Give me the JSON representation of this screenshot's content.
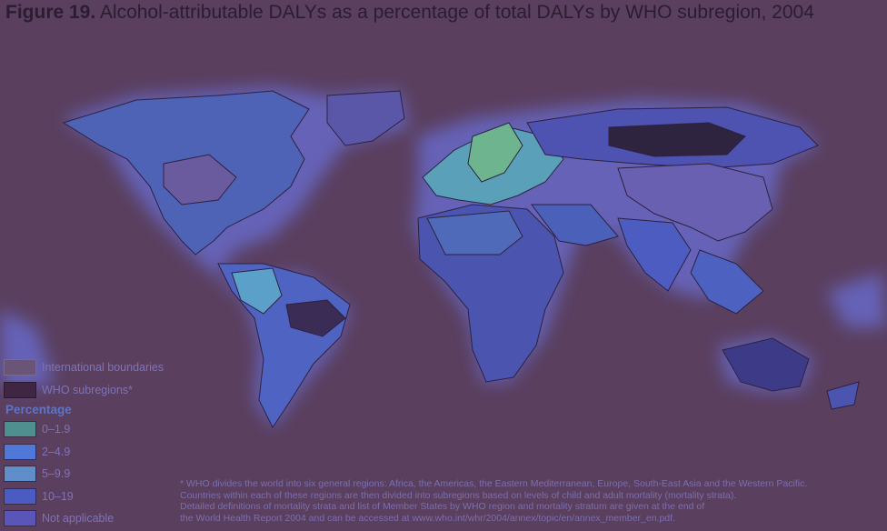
{
  "title": {
    "label": "Figure 19.",
    "text": "Alcohol-attributable DALYs as a percentage of total DALYs by WHO subregion, 2004"
  },
  "legend": {
    "boundaries": [
      {
        "label": "International boundaries",
        "color": "#6a5478"
      },
      {
        "label": "WHO subregions*",
        "color": "#3f2744"
      }
    ],
    "percentage_title": "Percentage",
    "classes": [
      {
        "label": "0–1.9",
        "color": "#4f8f90"
      },
      {
        "label": "2–4.9",
        "color": "#4f78d8"
      },
      {
        "label": "5–9.9",
        "color": "#5f8ec9"
      },
      {
        "label": "10–19",
        "color": "#4a5cc2"
      },
      {
        "label": "Not applicable",
        "color": "#5a55b8"
      }
    ]
  },
  "footnote": [
    "* WHO divides the world into six general regions: Africa, the Americas, the Eastern Mediterranean, Europe, South-East Asia and the Western Pacific.",
    "Countries within each of these regions are then divided into subregions based on levels of child and adult mortality (mortality strata).",
    "Detailed definitions of mortality strata and list of Member States by WHO region and mortality stratum are given at the end of",
    "the World Health Report 2004 and can be accessed at www.who.int/whr/2004/annex/topic/en/annex_member_en.pdf."
  ],
  "colors": {
    "background": "#5a3f5f",
    "land_glow": "#6f7fff",
    "border": "#2e2140"
  }
}
